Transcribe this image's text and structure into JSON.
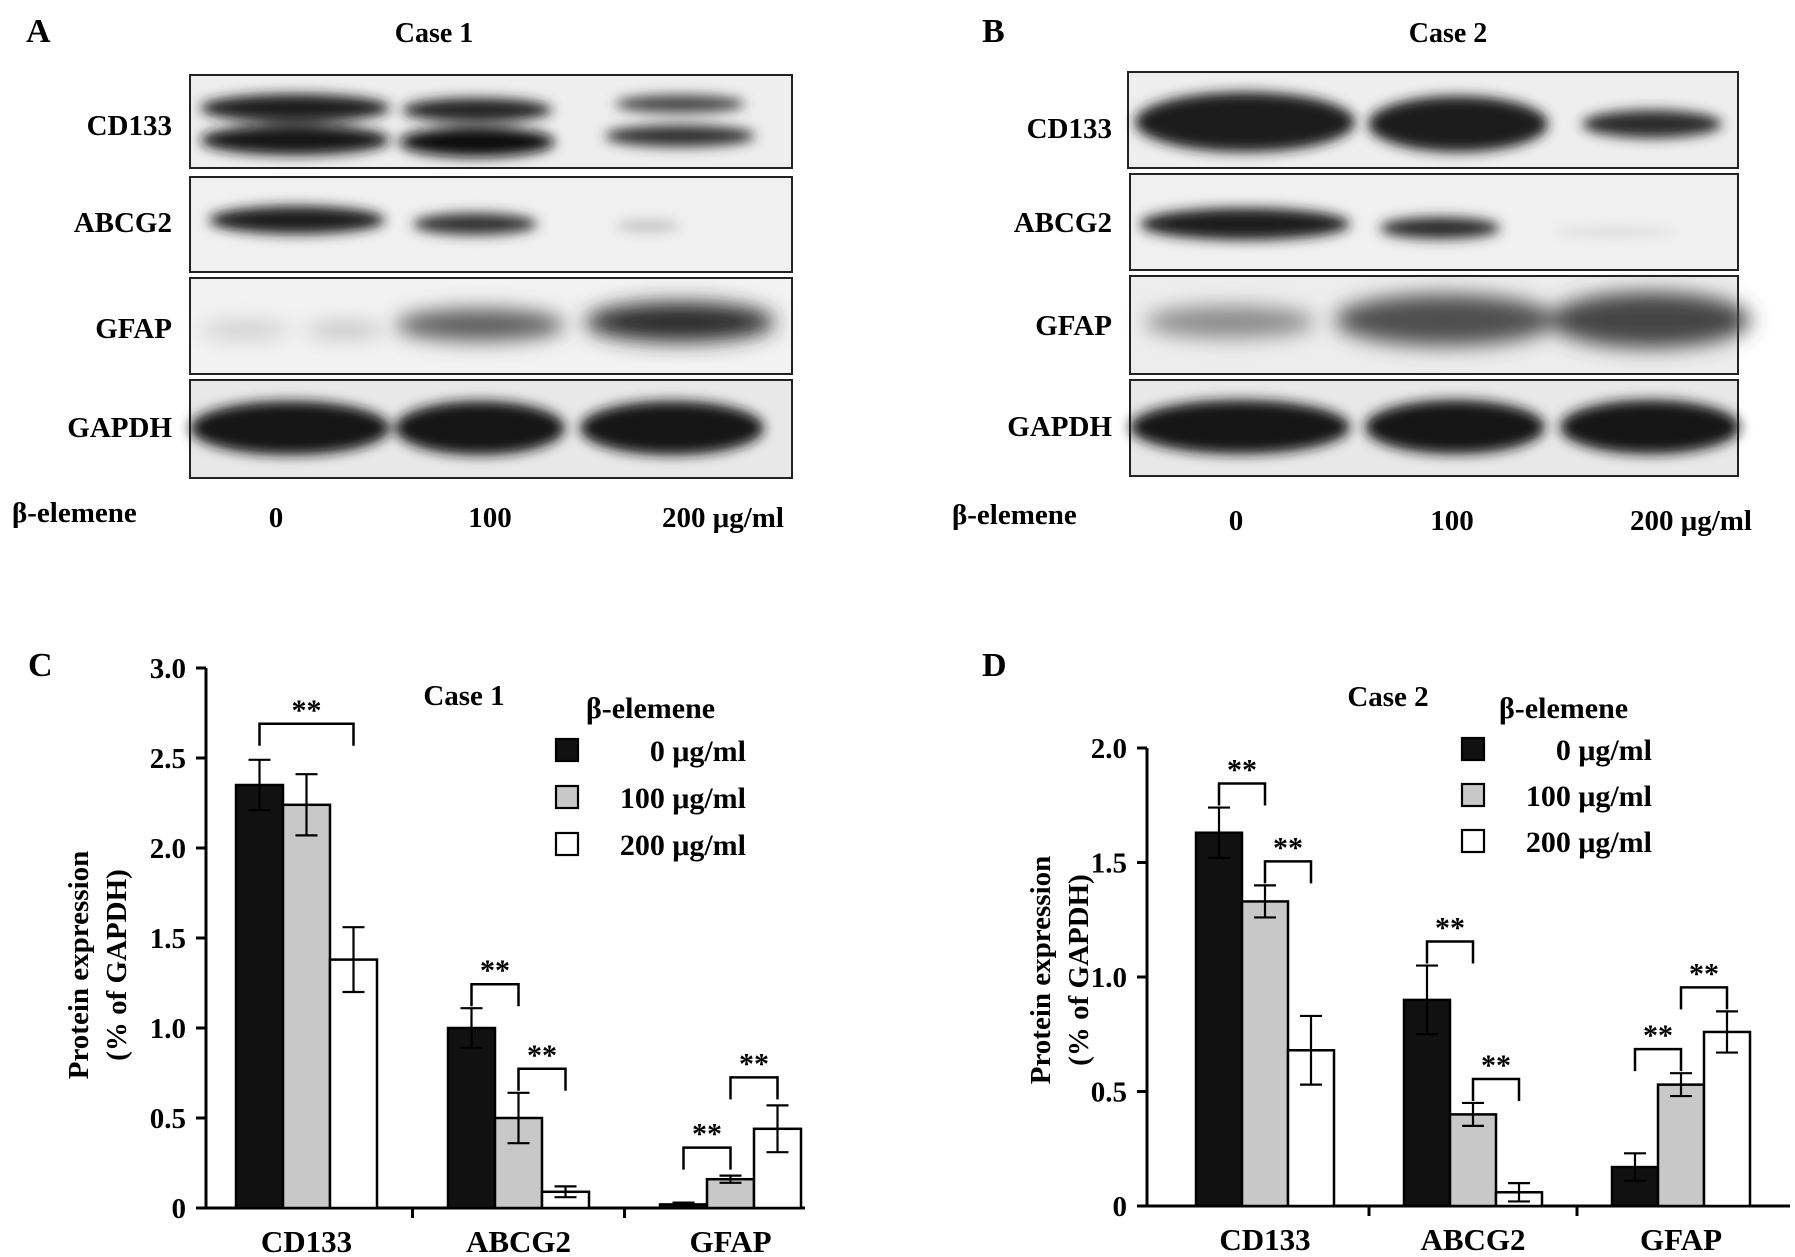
{
  "blot_panels": [
    {
      "letter": "A",
      "title": "Case 1",
      "row_labels": [
        "CD133",
        "ABCG2",
        "GFAP",
        "GAPDH"
      ],
      "treatment_label": "β-elemene",
      "dose_labels": [
        "0",
        "100",
        "200 μg/ml"
      ]
    },
    {
      "letter": "B",
      "title": "Case 2",
      "row_labels": [
        "CD133",
        "ABCG2",
        "GFAP",
        "GAPDH"
      ],
      "treatment_label": "β-elemene",
      "dose_labels": [
        "0",
        "100",
        "200 μg/ml"
      ]
    }
  ],
  "chart_data": [
    {
      "letter": "C",
      "type": "bar",
      "title": "Case 1",
      "ylabel": [
        "Protein expression",
        "(% of GAPDH)"
      ],
      "categories": [
        "CD133",
        "ABCG2",
        "GFAP"
      ],
      "ylim": [
        0,
        3.0
      ],
      "yticks": [
        0,
        0.5,
        1.0,
        1.5,
        2.0,
        2.5,
        3.0
      ],
      "ytick_labels": [
        "0",
        "0.5",
        "1.0",
        "1.5",
        "2.0",
        "2.5",
        "3.0"
      ],
      "legend_title": "β-elemene",
      "legend_position": "top-right",
      "series": [
        {
          "name": "0 μg/ml",
          "color": "#111111",
          "values": [
            2.35,
            1.0,
            0.02
          ],
          "errors": [
            0.14,
            0.11,
            0.01
          ]
        },
        {
          "name": "100 μg/ml",
          "color": "#c8c8c8",
          "values": [
            2.24,
            0.5,
            0.16
          ],
          "errors": [
            0.17,
            0.14,
            0.02
          ]
        },
        {
          "name": "200 μg/ml",
          "color": "#ffffff",
          "values": [
            1.38,
            0.09,
            0.44
          ],
          "errors": [
            0.18,
            0.03,
            0.13
          ]
        }
      ],
      "significance": [
        {
          "category": 0,
          "from": 0,
          "to": 2,
          "label": "**"
        },
        {
          "category": 1,
          "from": 0,
          "to": 1,
          "label": "**"
        },
        {
          "category": 1,
          "from": 1,
          "to": 2,
          "label": "**"
        },
        {
          "category": 2,
          "from": 0,
          "to": 1,
          "label": "**"
        },
        {
          "category": 2,
          "from": 1,
          "to": 2,
          "label": "**"
        }
      ]
    },
    {
      "letter": "D",
      "type": "bar",
      "title": "Case 2",
      "ylabel": [
        "Protein expression",
        "(% of GAPDH)"
      ],
      "categories": [
        "CD133",
        "ABCG2",
        "GFAP"
      ],
      "ylim": [
        0,
        2.0
      ],
      "yticks": [
        0,
        0.5,
        1.0,
        1.5,
        2.0
      ],
      "ytick_labels": [
        "0",
        "0.5",
        "1.0",
        "1.5",
        "2.0"
      ],
      "legend_title": "β-elemene",
      "legend_position": "top-right",
      "series": [
        {
          "name": "0 μg/ml",
          "color": "#111111",
          "values": [
            1.63,
            0.9,
            0.17
          ],
          "errors": [
            0.11,
            0.15,
            0.06
          ]
        },
        {
          "name": "100 μg/ml",
          "color": "#c8c8c8",
          "values": [
            1.33,
            0.4,
            0.53
          ],
          "errors": [
            0.07,
            0.05,
            0.05
          ]
        },
        {
          "name": "200 μg/ml",
          "color": "#ffffff",
          "values": [
            0.68,
            0.06,
            0.76
          ],
          "errors": [
            0.15,
            0.04,
            0.09
          ]
        }
      ],
      "significance": [
        {
          "category": 0,
          "from": 0,
          "to": 1,
          "label": "**"
        },
        {
          "category": 0,
          "from": 1,
          "to": 2,
          "label": "**"
        },
        {
          "category": 1,
          "from": 0,
          "to": 1,
          "label": "**"
        },
        {
          "category": 1,
          "from": 1,
          "to": 2,
          "label": "**"
        },
        {
          "category": 2,
          "from": 0,
          "to": 1,
          "label": "**"
        },
        {
          "category": 2,
          "from": 1,
          "to": 2,
          "label": "**"
        }
      ]
    }
  ]
}
